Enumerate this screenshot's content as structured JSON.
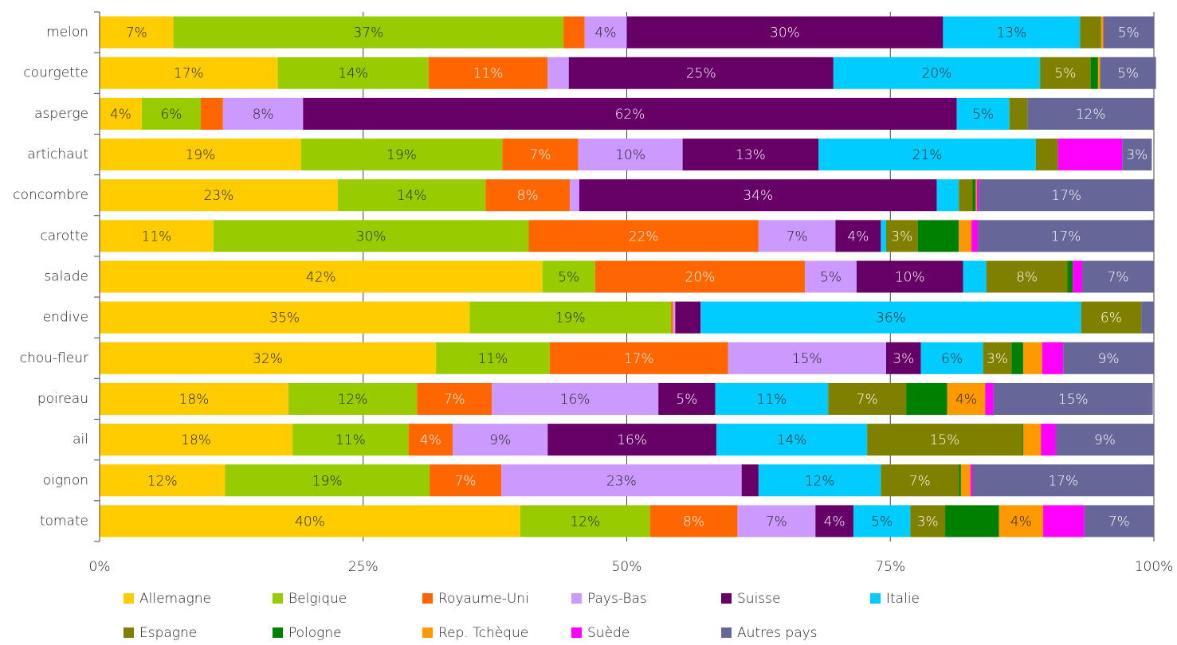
{
  "chart_data": {
    "type": "stacked_barh",
    "categories": [
      "melon",
      "courgette",
      "asperge",
      "artichaut",
      "concombre",
      "carotte",
      "salade",
      "endive",
      "chou-fleur",
      "poireau",
      "ail",
      "oignon",
      "tomate"
    ],
    "series": [
      {
        "name": "Allemagne",
        "color": "#ffcc00",
        "values": [
          7,
          16.9,
          4,
          19.1,
          22.6,
          10.8,
          42,
          35.1,
          31.9,
          17.9,
          18.3,
          11.9,
          39.9
        ],
        "value_labels": [
          "7%",
          "17%",
          "4%",
          "19%",
          "23%",
          "11%",
          "42%",
          "35%",
          "32%",
          "18%",
          "18%",
          "12%",
          "40%"
        ]
      },
      {
        "name": "Belgique",
        "color": "#99cc00",
        "values": [
          37,
          14.3,
          5.6,
          19.1,
          14,
          29.9,
          5,
          19.1,
          10.8,
          12.2,
          11,
          19.4,
          12.3
        ],
        "value_labels": [
          "37%",
          "14%",
          "6%",
          "19%",
          "14%",
          "30%",
          "5%",
          "19%",
          "11%",
          "12%",
          "11%",
          "19%",
          "12%"
        ]
      },
      {
        "name": "Royaume-Uni",
        "color": "#ff6600",
        "values": [
          2,
          11.3,
          2.1,
          7.2,
          8,
          21.8,
          19.9,
          0.2,
          16.9,
          7.1,
          4.2,
          6.8,
          8.3
        ],
        "value_labels": [
          null,
          "11%",
          null,
          "7%",
          "8%",
          "22%",
          "20%",
          null,
          "17%",
          "7%",
          "4%",
          "7%",
          "8%"
        ]
      },
      {
        "name": "Pays-Bas",
        "color": "#cc99ff",
        "values": [
          4,
          2,
          7.6,
          9.9,
          0.9,
          7.3,
          4.9,
          0.2,
          15,
          15.8,
          9,
          22.8,
          7.4
        ],
        "value_labels": [
          "4%",
          null,
          "8%",
          "10%",
          null,
          "7%",
          "5%",
          null,
          "15%",
          "16%",
          "9%",
          "23%",
          "7%"
        ]
      },
      {
        "name": "Suisse",
        "color": "#660066",
        "values": [
          30,
          25.1,
          62,
          12.9,
          33.9,
          4.3,
          10.1,
          2.4,
          3.3,
          5.4,
          16,
          1.6,
          3.6
        ],
        "value_labels": [
          "30%",
          "25%",
          "62%",
          "13%",
          "34%",
          "4%",
          "10%",
          null,
          "3%",
          "5%",
          "16%",
          null,
          "4%"
        ]
      },
      {
        "name": "Italie",
        "color": "#00ccff",
        "values": [
          13,
          19.6,
          5,
          20.6,
          2.1,
          0.5,
          2.2,
          36.1,
          5.9,
          10.7,
          14.3,
          11.6,
          5.4
        ],
        "value_labels": [
          "13%",
          "20%",
          "5%",
          "21%",
          null,
          null,
          null,
          "36%",
          "6%",
          "11%",
          "14%",
          "12%",
          "5%"
        ]
      },
      {
        "name": "Espagne",
        "color": "#808000",
        "values": [
          2,
          4.8,
          1.7,
          2.1,
          1.3,
          3,
          7.7,
          5.7,
          2.7,
          7.4,
          14.7,
          7.4,
          3.3
        ],
        "value_labels": [
          null,
          "5%",
          null,
          null,
          null,
          "3%",
          "8%",
          "6%",
          "3%",
          "7%",
          "15%",
          "7%",
          "3%"
        ]
      },
      {
        "name": "Pologne",
        "color": "#008000",
        "values": [
          0,
          0.7,
          0,
          0,
          0.3,
          3.9,
          0.5,
          0,
          1.1,
          3.9,
          0.1,
          0.2,
          5.1
        ]
      },
      {
        "name": "Rep. Tchèque",
        "color": "#ff9900",
        "values": [
          0.2,
          0.2,
          0,
          0,
          0.1,
          1.2,
          0,
          0,
          1.8,
          3.6,
          1.7,
          0.9,
          4.2
        ],
        "value_labels": [
          null,
          null,
          null,
          null,
          null,
          null,
          null,
          null,
          null,
          "4%",
          null,
          null,
          "4%"
        ]
      },
      {
        "name": "Suède",
        "color": "#ff00ff",
        "values": [
          0,
          0,
          0,
          6.1,
          0.2,
          0.6,
          0.9,
          0,
          2,
          0.8,
          1.4,
          0.2,
          3.9
        ]
      },
      {
        "name": "Autres pays",
        "color": "#666699",
        "values": [
          4.8,
          5.3,
          12,
          2.8,
          16.6,
          16.7,
          6.8,
          1.2,
          8.6,
          15.1,
          9.3,
          17.2,
          6.6
        ],
        "value_labels": [
          "5%",
          "5%",
          "12%",
          "3%",
          "17%",
          "17%",
          "7%",
          null,
          "9%",
          "15%",
          "9%",
          "17%",
          "7%"
        ]
      }
    ],
    "xlim": [
      0,
      100
    ],
    "xticks": [
      {
        "value": 0,
        "label": "0%"
      },
      {
        "value": 25,
        "label": "25%"
      },
      {
        "value": 50,
        "label": "50%"
      },
      {
        "value": 75,
        "label": "75%"
      },
      {
        "value": 100,
        "label": "100%"
      }
    ],
    "grid": true,
    "legend": "bottom"
  }
}
